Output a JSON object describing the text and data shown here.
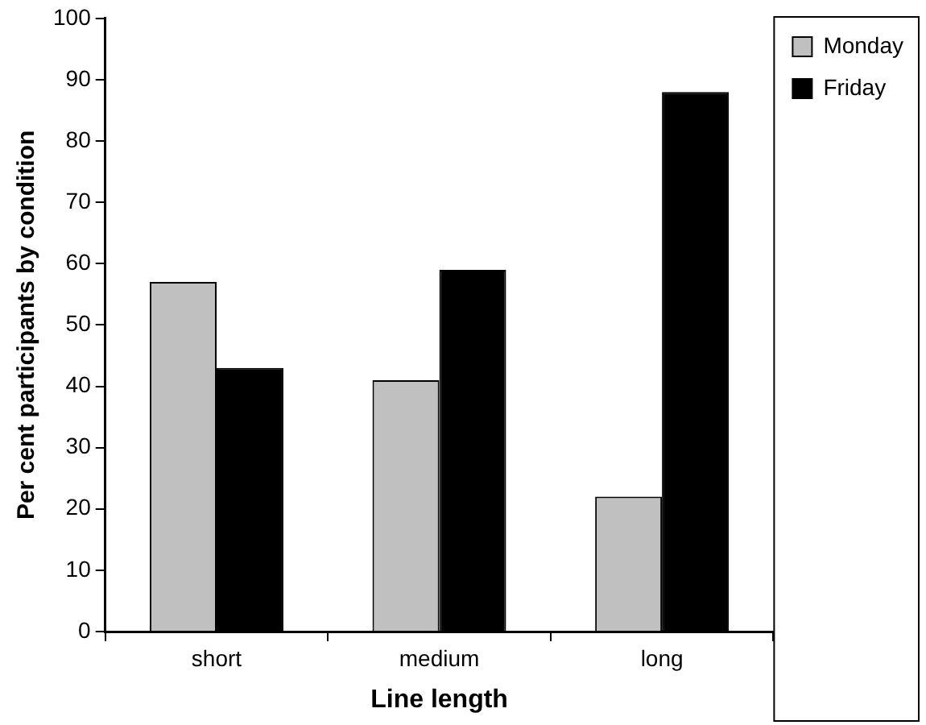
{
  "chart_data": {
    "type": "bar",
    "categories": [
      "short",
      "medium",
      "long"
    ],
    "series": [
      {
        "name": "Monday",
        "color": "#c0c0c0",
        "values": [
          57,
          41,
          22
        ]
      },
      {
        "name": "Friday",
        "color": "#000000",
        "values": [
          43,
          59,
          88
        ]
      }
    ],
    "xlabel": "Line length",
    "ylabel": "Per cent participants by condition",
    "ylim": [
      0,
      100
    ],
    "yticks": [
      0,
      10,
      20,
      30,
      40,
      50,
      60,
      70,
      80,
      90,
      100
    ],
    "grid": false,
    "legend": "top right"
  }
}
